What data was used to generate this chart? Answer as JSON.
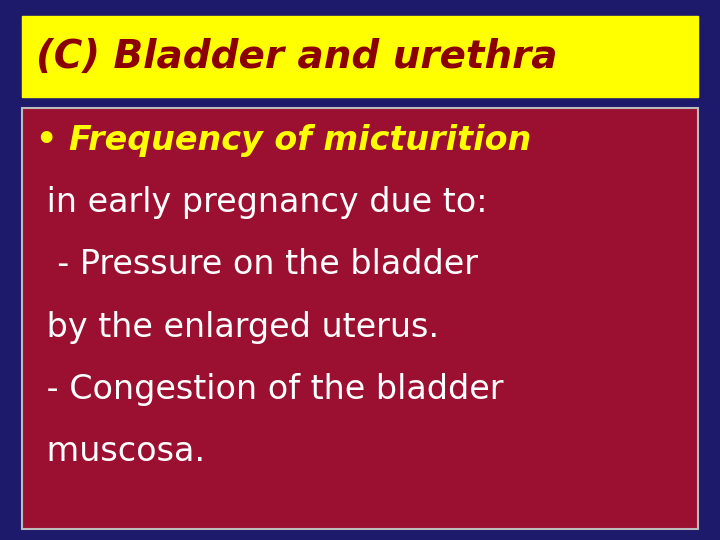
{
  "bg_color": "#1e1a6b",
  "title_text": "(C) Bladder and urethra",
  "title_bg": "#ffff00",
  "title_fg": "#8b0000",
  "title_fontsize": 28,
  "box_bg_top": "#9b1030",
  "box_bg_bot": "#5a0820",
  "box_border": "#bbbbbb",
  "line1_text": "• Frequency of micturition",
  "line1_color": "#ffff00",
  "line1_fontsize": 24,
  "line2_text": " in early pregnancy due to:",
  "line2_color": "#ffffff",
  "line2_fontsize": 24,
  "line3_text": "  - Pressure on the bladder",
  "line3_color": "#ffffff",
  "line3_fontsize": 24,
  "line4_text": " by the enlarged uterus.",
  "line4_color": "#ffffff",
  "line4_fontsize": 24,
  "line5_text": " - Congestion of the bladder",
  "line5_color": "#ffffff",
  "line5_fontsize": 24,
  "line6_text": " muscosa.",
  "line6_color": "#ffffff",
  "line6_fontsize": 24
}
